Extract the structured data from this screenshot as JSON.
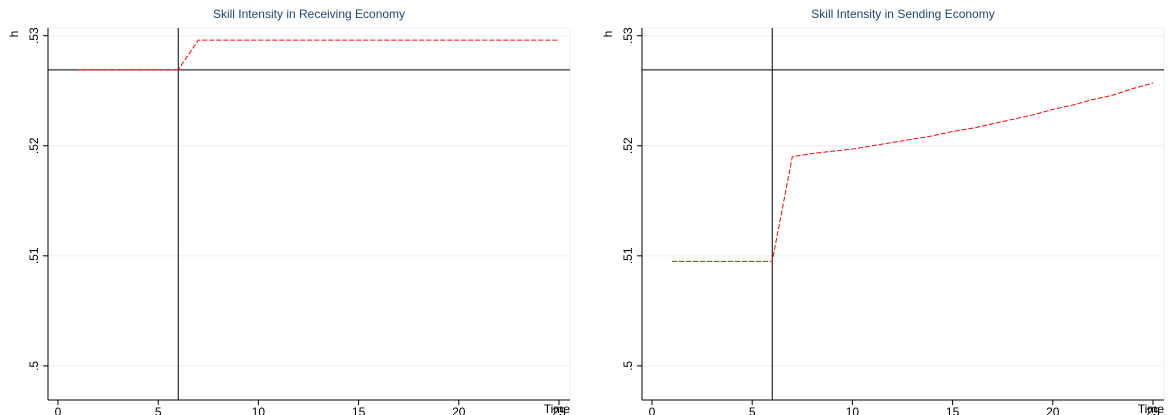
{
  "chart_data": [
    {
      "type": "line",
      "title": "Skill Intensity in Receiving Economy",
      "y_label": "h",
      "x_label": "Time",
      "x": [
        1,
        2,
        3,
        4,
        5,
        6,
        7,
        8,
        9,
        10,
        11,
        12,
        13,
        14,
        15,
        16,
        17,
        18,
        19,
        20,
        21,
        22,
        23,
        24,
        25
      ],
      "series": [
        {
          "color": "#ff0000",
          "values": [
            0.5269,
            0.5269,
            0.5269,
            0.5269,
            0.5269,
            0.5269,
            0.5296,
            0.5296,
            0.5296,
            0.5296,
            0.5296,
            0.5296,
            0.5296,
            0.5296,
            0.5296,
            0.5296,
            0.5296,
            0.5296,
            0.5296,
            0.5296,
            0.5296,
            0.5296,
            0.5296,
            0.5296,
            0.5296
          ]
        }
      ],
      "hline": 0.5269,
      "vline": 6,
      "xlim": [
        -0.5,
        25.55
      ],
      "xticks": [
        0,
        5,
        10,
        15,
        20,
        25
      ],
      "ylim": [
        0.4969,
        0.5307
      ],
      "yticks": [
        {
          "value": 0.5,
          "label": ".5"
        },
        {
          "value": 0.51,
          "label": ".51"
        },
        {
          "value": 0.52,
          "label": ".52"
        },
        {
          "value": 0.53,
          "label": ".53"
        }
      ],
      "grid": true
    },
    {
      "type": "line",
      "title": "Skill Intensity in Sending Economy",
      "y_label": "h",
      "x_label": "Time",
      "x": [
        1,
        2,
        3,
        4,
        5,
        6,
        7,
        8,
        9,
        10,
        11,
        12,
        13,
        14,
        15,
        16,
        17,
        18,
        19,
        20,
        21,
        22,
        23,
        24,
        25
      ],
      "series": [
        {
          "color": "#ff0000",
          "values": [
            0.5095,
            0.5095,
            0.5095,
            0.5095,
            0.5095,
            0.5095,
            0.519,
            0.5193,
            0.5195,
            0.5197,
            0.52,
            0.5203,
            0.5206,
            0.5209,
            0.5213,
            0.5216,
            0.522,
            0.5224,
            0.5228,
            0.5233,
            0.5237,
            0.5242,
            0.5246,
            0.5252,
            0.5257
          ]
        }
      ],
      "hline": 0.5269,
      "vline": 6,
      "xlim": [
        -0.5,
        25.55
      ],
      "xticks": [
        0,
        5,
        10,
        15,
        20,
        25
      ],
      "ylim": [
        0.4969,
        0.5307
      ],
      "yticks": [
        {
          "value": 0.5,
          "label": ".5"
        },
        {
          "value": 0.51,
          "label": ".51"
        },
        {
          "value": 0.52,
          "label": ".52"
        },
        {
          "value": 0.53,
          "label": ".53"
        }
      ],
      "grid": true
    }
  ]
}
